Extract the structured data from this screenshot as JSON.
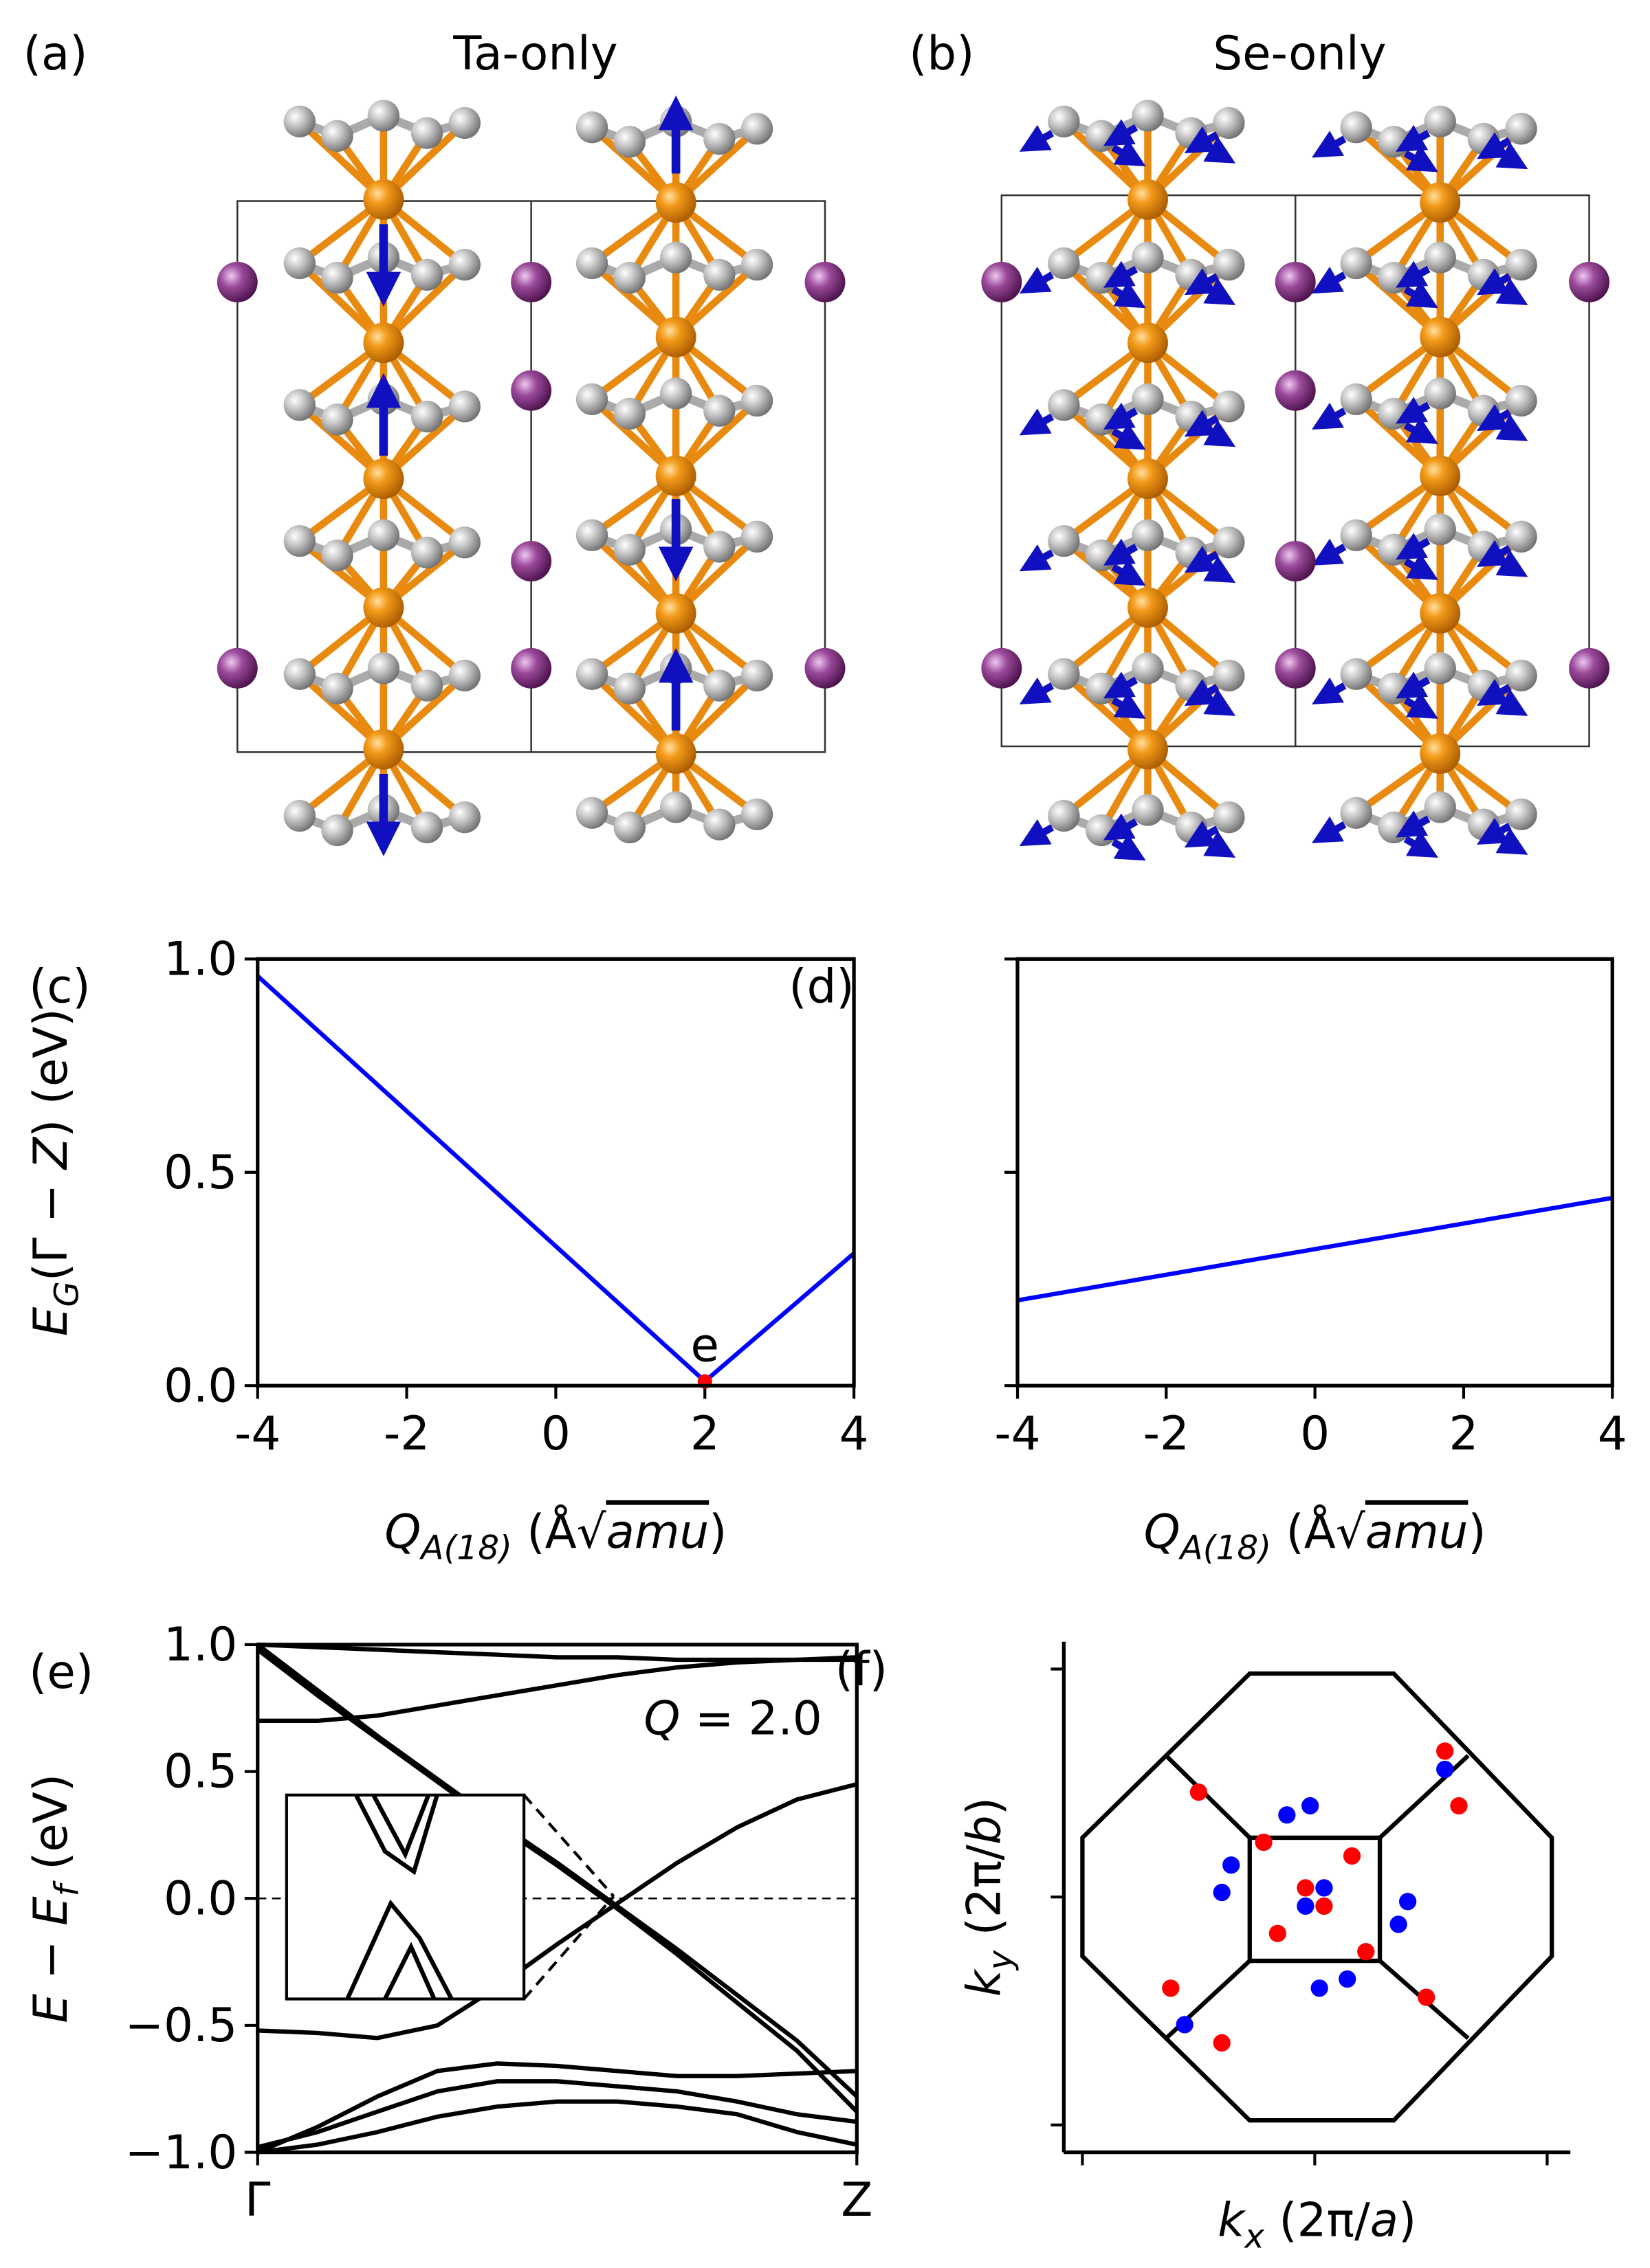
{
  "panels": [
    {
      "label": "(a)",
      "title": "Ta-only"
    },
    {
      "label": "(b)",
      "title": "Se-only"
    }
  ],
  "chart_data": [
    {
      "type": "line",
      "panel_label": "(c)",
      "ylabel": [
        {
          "text": "E",
          "italic": true
        },
        {
          "text": "G",
          "italic": true,
          "sub": true
        },
        {
          "text": "(Γ − "
        },
        {
          "text": "Z",
          "italic": true
        },
        {
          "text": ") (eV)"
        }
      ],
      "xlabel": [
        {
          "text": "Q",
          "italic": true
        },
        {
          "text": "A(18)",
          "italic": true,
          "sub": true
        },
        {
          "text": " (Å√"
        },
        {
          "text": "amu",
          "italic": true,
          "overline": true
        },
        {
          "text": ")"
        }
      ],
      "x": [
        -4,
        2,
        4
      ],
      "series": [
        {
          "color": "#0000ff",
          "values": [
            0.96,
            0.01,
            0.31
          ]
        }
      ],
      "annotations": [
        {
          "text": "e",
          "x": 2,
          "y": 0.01,
          "color": "#ff0000"
        }
      ],
      "xlim": [
        -4,
        4
      ],
      "xticks": [
        -4,
        -2,
        0,
        2,
        4
      ],
      "ylim": [
        0,
        1
      ],
      "yticks": [
        {
          "value": 0,
          "label": "0.0"
        },
        {
          "value": 0.5,
          "label": "0.5"
        },
        {
          "value": 1,
          "label": "1.0"
        }
      ],
      "spines": "box"
    },
    {
      "type": "line",
      "panel_label": "(d)",
      "xlabel": [
        {
          "text": "Q",
          "italic": true
        },
        {
          "text": "A(18)",
          "italic": true,
          "sub": true
        },
        {
          "text": " (Å√"
        },
        {
          "text": "amu",
          "italic": true,
          "overline": true
        },
        {
          "text": ")"
        }
      ],
      "x": [
        -4,
        4
      ],
      "series": [
        {
          "color": "#0000ff",
          "values": [
            0.2,
            0.44
          ]
        }
      ],
      "xlim": [
        -4,
        4
      ],
      "xticks": [
        -4,
        -2,
        0,
        2,
        4
      ],
      "ylim": [
        0,
        1
      ],
      "yticks": [
        0,
        0.5,
        1
      ],
      "ytick_labels": false,
      "spines": "box"
    },
    {
      "type": "line",
      "panel_label": "(e)",
      "ylabel": [
        {
          "text": "E",
          "italic": true
        },
        {
          "text": " − "
        },
        {
          "text": "E",
          "italic": true
        },
        {
          "text": "f",
          "italic": true,
          "sub": true
        },
        {
          "text": " (eV)"
        }
      ],
      "annotation_text": [
        {
          "text": "Q",
          "italic": true
        },
        {
          "text": " = 2.0"
        }
      ],
      "x": [
        0,
        0.1,
        0.2,
        0.3,
        0.4,
        0.5,
        0.6,
        0.7,
        0.8,
        0.9,
        1
      ],
      "series": [
        {
          "color": "#000000",
          "values": [
            1.0,
            0.82,
            0.64,
            0.47,
            0.3,
            0.14,
            -0.03,
            -0.2,
            -0.38,
            -0.56,
            -0.78
          ]
        },
        {
          "color": "#000000",
          "values": [
            0.98,
            0.8,
            0.63,
            0.46,
            0.29,
            0.13,
            -0.04,
            -0.22,
            -0.41,
            -0.6,
            -0.84
          ]
        },
        {
          "color": "#000000",
          "values": [
            -0.52,
            -0.53,
            -0.55,
            -0.5,
            -0.35,
            -0.18,
            -0.02,
            0.14,
            0.28,
            0.39,
            0.45
          ]
        },
        {
          "color": "#000000",
          "values": [
            0.7,
            0.7,
            0.72,
            0.76,
            0.8,
            0.84,
            0.88,
            0.91,
            0.93,
            0.94,
            0.95
          ]
        },
        {
          "color": "#000000",
          "values": [
            1.0,
            0.99,
            0.98,
            0.97,
            0.96,
            0.95,
            0.95,
            0.94,
            0.94,
            0.94,
            0.94
          ]
        },
        {
          "color": "#000000",
          "values": [
            -1.0,
            -0.9,
            -0.78,
            -0.68,
            -0.65,
            -0.66,
            -0.68,
            -0.7,
            -0.7,
            -0.69,
            -0.68
          ]
        },
        {
          "color": "#000000",
          "values": [
            -0.98,
            -0.92,
            -0.84,
            -0.76,
            -0.72,
            -0.72,
            -0.74,
            -0.76,
            -0.8,
            -0.85,
            -0.88
          ]
        },
        {
          "color": "#000000",
          "values": [
            -1.0,
            -0.97,
            -0.92,
            -0.86,
            -0.82,
            -0.8,
            -0.8,
            -0.82,
            -0.85,
            -0.92,
            -0.97
          ]
        }
      ],
      "reference_line": 0,
      "xlim": [
        0,
        1
      ],
      "xticks": [
        {
          "value": 0,
          "label": "Γ"
        },
        {
          "value": 1,
          "label": "Z"
        }
      ],
      "ylim": [
        -1,
        1
      ],
      "yticks": [
        {
          "value": -1,
          "label": "−1.0"
        },
        {
          "value": -0.5,
          "label": "−0.5"
        },
        {
          "value": 0,
          "label": "0.0"
        },
        {
          "value": 0.5,
          "label": "0.5"
        },
        {
          "value": 1,
          "label": "1.0"
        }
      ],
      "spines": "box"
    },
    {
      "type": "scatter",
      "panel_label": "(f)",
      "xlabel": [
        {
          "text": "k",
          "italic": true
        },
        {
          "text": "x",
          "italic": true,
          "sub": true
        },
        {
          "text": " (2π/"
        },
        {
          "text": "a",
          "italic": true
        },
        {
          "text": ")"
        }
      ],
      "ylabel": [
        {
          "text": "k",
          "italic": true
        },
        {
          "text": "y",
          "italic": true,
          "sub": true
        },
        {
          "text": " (2π/"
        },
        {
          "text": "b",
          "italic": true
        },
        {
          "text": ")"
        }
      ],
      "series": [
        {
          "color": "#ff0000",
          "x": [
            -0.25,
            -0.11,
            0.08,
            0.28,
            0.31,
            -0.02,
            0.02,
            -0.08,
            0.11,
            -0.31,
            -0.2,
            0.24
          ],
          "values": [
            0.23,
            0.12,
            0.09,
            0.32,
            0.2,
            0.02,
            -0.02,
            -0.08,
            -0.12,
            -0.2,
            -0.32,
            -0.22
          ]
        },
        {
          "color": "#0000ff",
          "x": [
            -0.06,
            -0.01,
            0.28,
            -0.18,
            -0.2,
            0.02,
            -0.02,
            0.2,
            0.18,
            0.07,
            0.01,
            -0.28
          ],
          "values": [
            0.18,
            0.2,
            0.28,
            0.07,
            0.01,
            0.02,
            -0.02,
            -0.01,
            -0.06,
            -0.18,
            -0.2,
            -0.28
          ]
        }
      ],
      "xlim": [
        -0.54,
        0.55
      ],
      "xticks": [
        -0.5,
        0,
        0.5
      ],
      "xtick_labels": false,
      "ylim": [
        -0.56,
        0.56
      ],
      "yticks": [
        -0.5,
        0,
        0.5
      ],
      "ytick_labels": false,
      "spines": "left-bottom"
    }
  ]
}
